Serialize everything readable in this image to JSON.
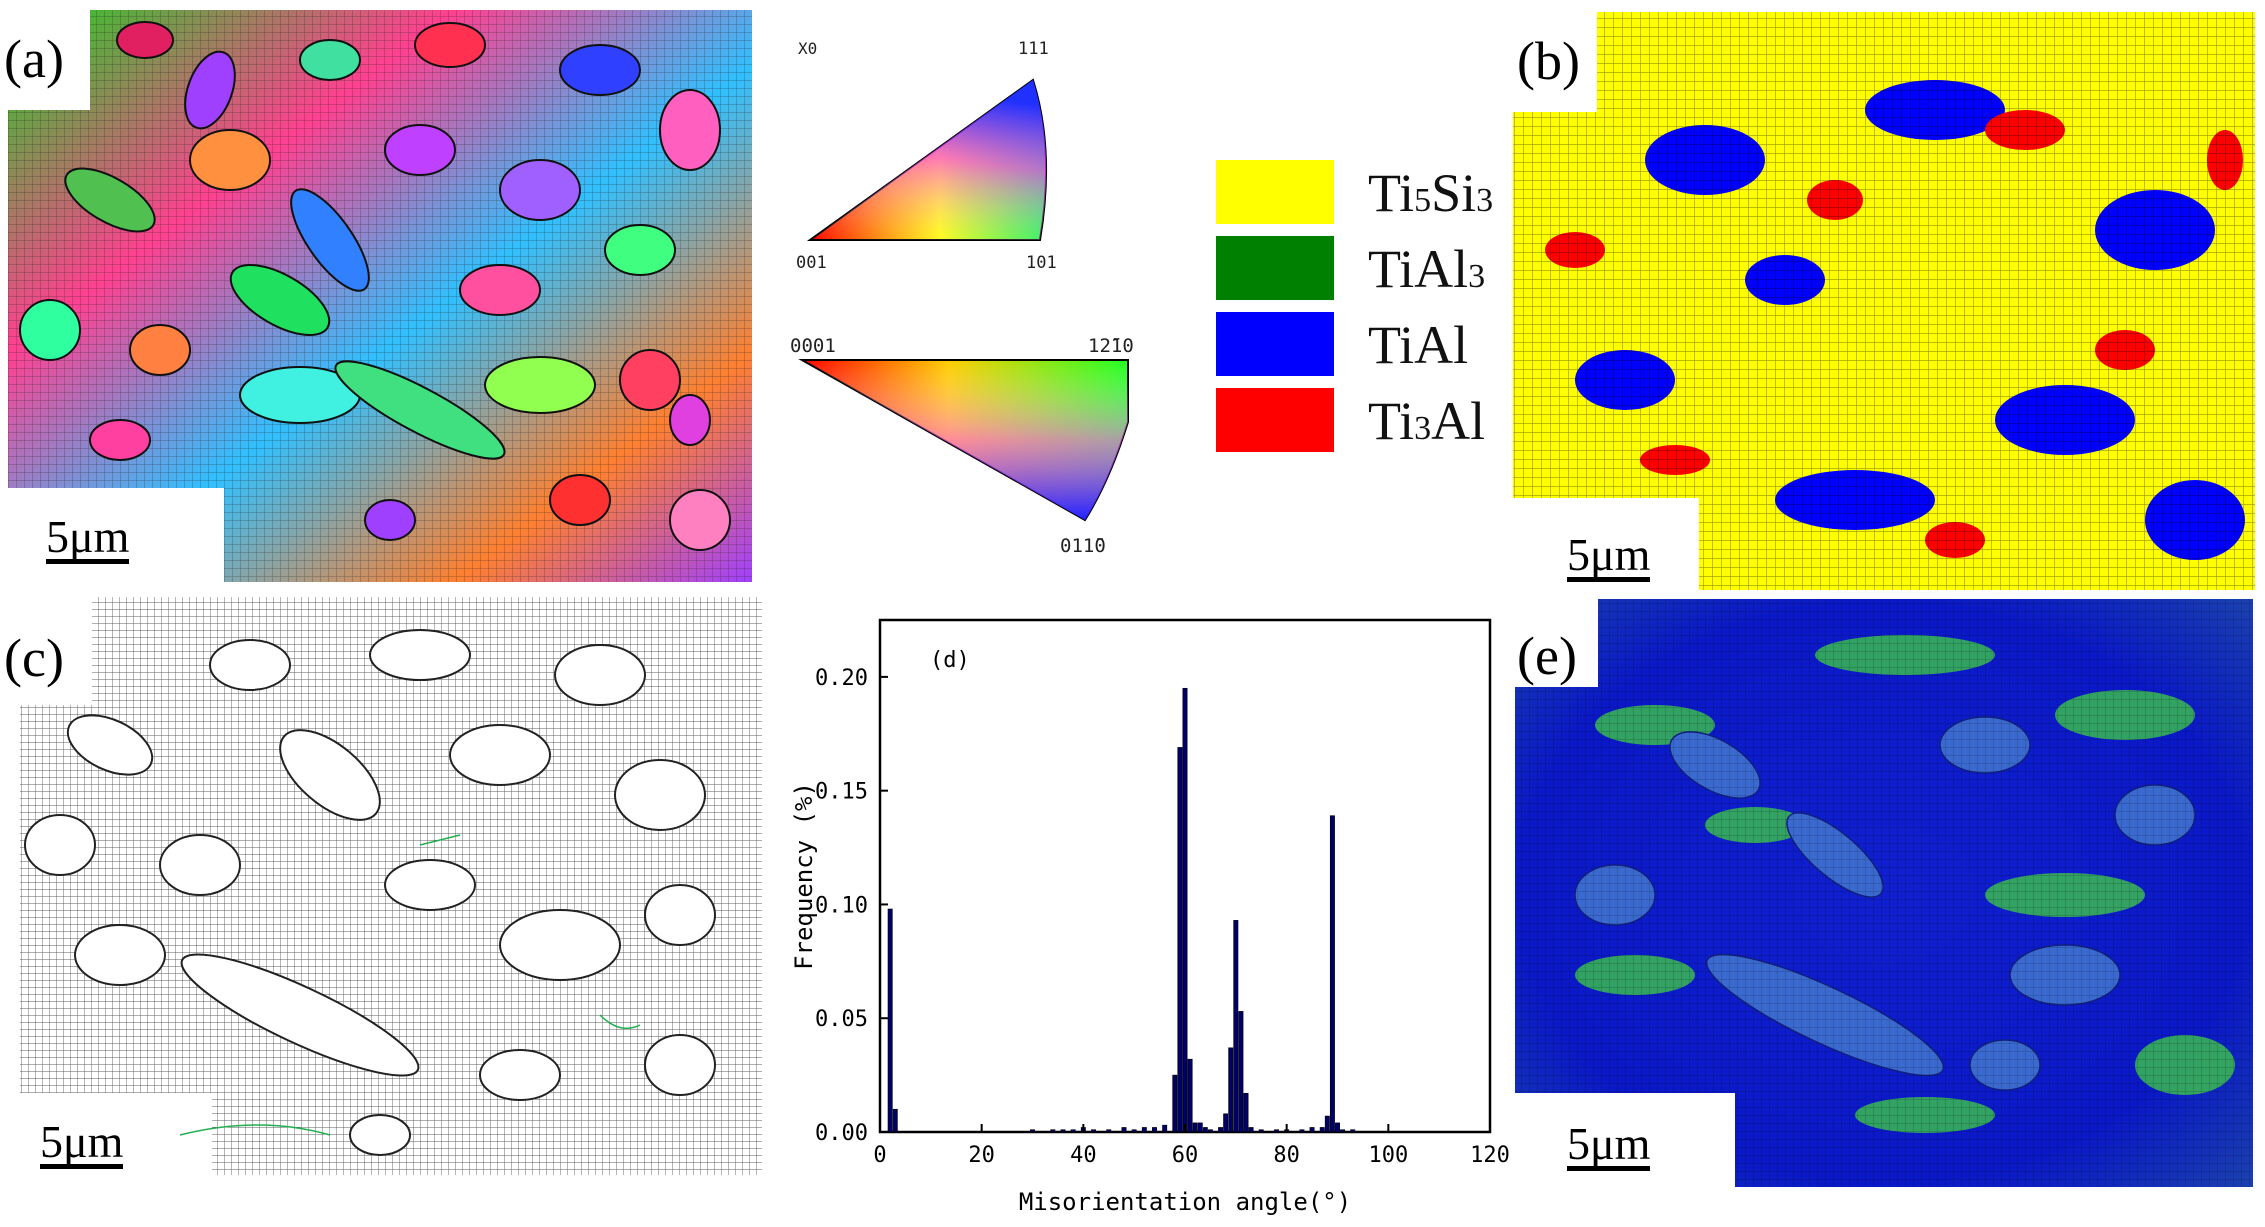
{
  "panels": {
    "a": {
      "label": "(a)",
      "scale": "5μm"
    },
    "b": {
      "label": "(b)",
      "scale": "5μm"
    },
    "c": {
      "label": "(c)",
      "scale": "5μm"
    },
    "e": {
      "label": "(e)",
      "scale": "5μm"
    }
  },
  "ipf_cubic": {
    "corner_top": "111",
    "corner_left": "001",
    "corner_right": "101",
    "top_left": "X0"
  },
  "ipf_hex": {
    "corner_left": "0001",
    "corner_right": "12̄10",
    "corner_bottom": "011̄0"
  },
  "phase_legend": [
    {
      "main": "Ti",
      "sub": "5",
      "main2": "Si",
      "sub2": "3",
      "color": "#ffff00"
    },
    {
      "main": "TiAl",
      "sub": "3",
      "main2": "",
      "sub2": "",
      "color": "#008000"
    },
    {
      "main": "TiAl",
      "sub": "",
      "main2": "",
      "sub2": "",
      "color": "#0000ff"
    },
    {
      "main": "Ti",
      "sub": "3",
      "main2": "Al",
      "sub2": "",
      "color": "#ff0000"
    }
  ],
  "chart_data": {
    "type": "bar",
    "panel_label": "(d)",
    "xlabel": "Misorientation angle(°)",
    "ylabel": "Frequency  (%)",
    "xlim": [
      0,
      120
    ],
    "ylim": [
      0,
      0.225
    ],
    "xticks": [
      0,
      20,
      40,
      60,
      80,
      100,
      120
    ],
    "yticks": [
      0.0,
      0.05,
      0.1,
      0.15,
      0.2
    ],
    "ytick_labels": [
      "0.00",
      "0.05",
      "0.10",
      "0.15",
      "0.20"
    ],
    "bar_color": "#000066",
    "x": [
      2,
      3,
      30,
      34,
      36,
      38,
      40,
      42,
      45,
      48,
      50,
      52,
      54,
      56,
      58,
      59,
      60,
      61,
      62,
      63,
      64,
      65,
      67,
      68,
      69,
      70,
      71,
      72,
      73,
      75,
      78,
      80,
      83,
      85,
      87,
      88,
      89,
      90,
      91,
      93
    ],
    "values": [
      0.098,
      0.01,
      0.001,
      0.001,
      0.001,
      0.001,
      0.002,
      0.001,
      0.001,
      0.002,
      0.001,
      0.002,
      0.002,
      0.003,
      0.025,
      0.169,
      0.195,
      0.032,
      0.004,
      0.004,
      0.002,
      0.001,
      0.002,
      0.008,
      0.037,
      0.093,
      0.053,
      0.017,
      0.002,
      0.001,
      0.001,
      0.001,
      0.001,
      0.002,
      0.002,
      0.007,
      0.139,
      0.004,
      0.001,
      0.001
    ]
  }
}
